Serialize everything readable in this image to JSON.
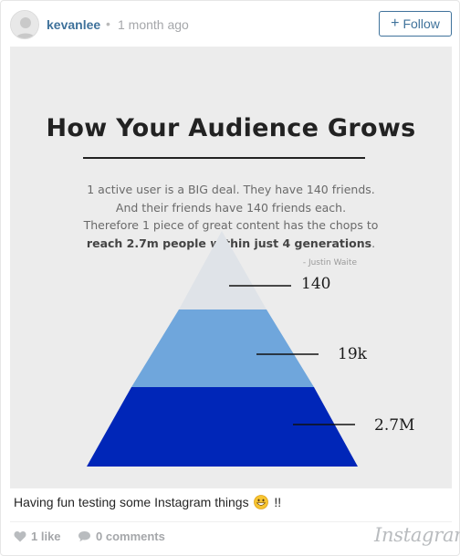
{
  "header": {
    "username": "kevanlee",
    "separator": "•",
    "time_ago": "1 month ago",
    "follow_label": "Follow",
    "follow_plus": "+"
  },
  "image": {
    "title": "How Your Audience Grows",
    "quote_lines": [
      "1 active user is a BIG deal. They have 140 friends.",
      "And their friends have 140 friends each.",
      "Therefore 1 piece of great content has the chops to"
    ],
    "quote_bold": "reach 2.7m people within just 4 generations",
    "quote_end": ".",
    "attribution": "- Justin Waite",
    "levels": [
      {
        "label": "140",
        "color": "#dfe3e8"
      },
      {
        "label": "19k",
        "color": "#6fa6dc"
      },
      {
        "label": "2.7M",
        "color": "#0026b8"
      }
    ]
  },
  "caption": {
    "text_before": "Having fun testing some Instagram things",
    "emoji": "grinning-face-icon",
    "text_after": "!!"
  },
  "footer": {
    "likes": "1 like",
    "comments": "0 comments",
    "brand": "Instagram"
  },
  "colors": {
    "link": "#3f729b",
    "muted": "#a5a7aa"
  }
}
